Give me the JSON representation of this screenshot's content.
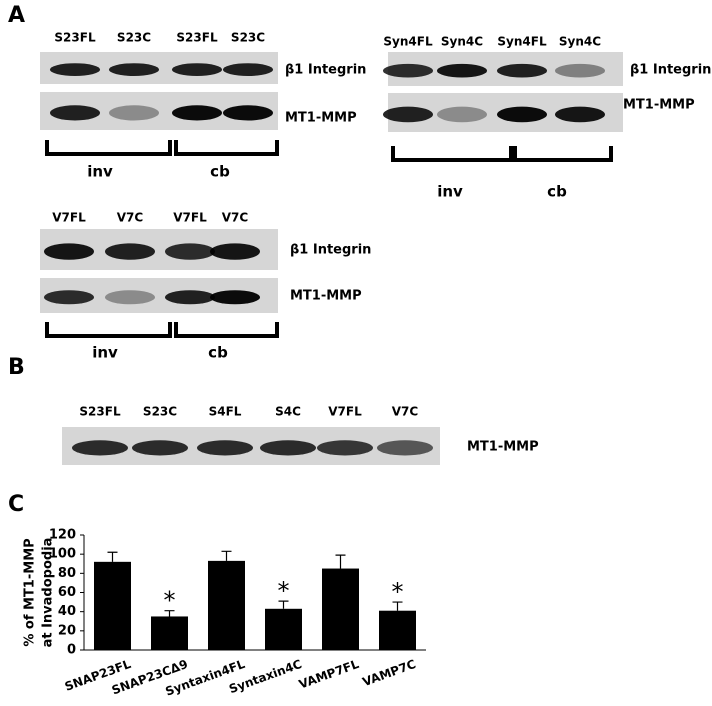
{
  "panel_labels": [
    "A",
    "B",
    "C"
  ],
  "blots": [
    {
      "lanes": [
        "S23FL",
        "S23C",
        "S23FL",
        "S23C"
      ],
      "bands": [
        "β1 Integrin",
        "MT1-MMP"
      ],
      "groups": [
        "inv",
        "cb"
      ]
    },
    {
      "lanes": [
        "Syn4FL",
        "Syn4C",
        "Syn4FL",
        "Syn4C"
      ],
      "bands": [
        "β1 Integrin",
        "MT1-MMP"
      ],
      "groups": [
        "inv",
        "cb"
      ]
    },
    {
      "lanes": [
        "V7FL",
        "V7C",
        "V7FL",
        "V7C"
      ],
      "bands": [
        "β1 Integrin",
        "MT1-MMP"
      ],
      "groups": [
        "inv",
        "cb"
      ]
    }
  ],
  "blot_b": {
    "lanes": [
      "S23FL",
      "S23C",
      "S4FL",
      "S4C",
      "V7FL",
      "V7C"
    ],
    "band": "MT1-MMP"
  },
  "chart_data": {
    "type": "bar",
    "ylabel": [
      "% of MT1-MMP",
      "at Invadopodia"
    ],
    "categories": [
      "SNAP23FL",
      "SNAP23CΔ9",
      "Syntaxin4FL",
      "Syntaxin4C",
      "VAMP7FL",
      "VAMP7C"
    ],
    "values": [
      92,
      35,
      93,
      43,
      85,
      41
    ],
    "errors": [
      10,
      6,
      10,
      8,
      14,
      9
    ],
    "significance_labels": [
      null,
      "*",
      null,
      "*",
      null,
      "*"
    ],
    "color": "#000000",
    "ylim": [
      0,
      120
    ],
    "yticks": [
      0,
      20,
      40,
      60,
      80,
      100,
      120
    ],
    "grid": false
  }
}
